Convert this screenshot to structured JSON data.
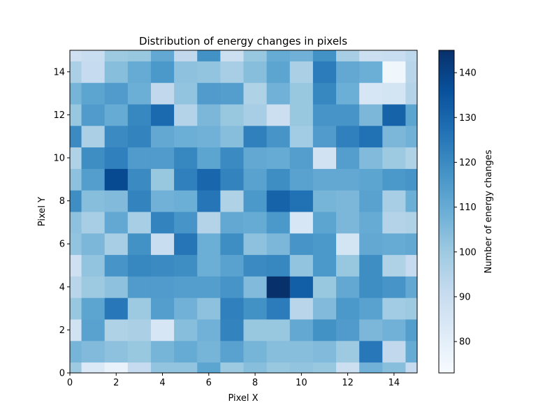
{
  "chart_data": {
    "type": "heatmap",
    "title": "Distribution of energy changes in pixels",
    "xlabel": "Pixel X",
    "ylabel": "Pixel Y",
    "xlim": [
      0,
      15
    ],
    "ylim": [
      0,
      15
    ],
    "x_ticks": [
      0,
      2,
      4,
      6,
      8,
      10,
      12,
      14
    ],
    "y_ticks": [
      0,
      2,
      4,
      6,
      8,
      10,
      12,
      14
    ],
    "colorbar": {
      "label": "Number of energy changes",
      "min": 73,
      "max": 145,
      "ticks": [
        80,
        90,
        100,
        110,
        120,
        130,
        140
      ],
      "colormap": "Blues",
      "stops": [
        "#f7fbff",
        "#deebf7",
        "#c6dbef",
        "#9ecae1",
        "#6baed6",
        "#4292c6",
        "#2171b5",
        "#08519c",
        "#08306b"
      ]
    },
    "grid": false,
    "row_order": "bottom-to-top",
    "values": [
      [
        100,
        83,
        78,
        91,
        102,
        102,
        112,
        100,
        104,
        101,
        102,
        101,
        89,
        108,
        104,
        91
      ],
      [
        107,
        105,
        103,
        101,
        107,
        110,
        107,
        113,
        107,
        104,
        104,
        105,
        100,
        125,
        92,
        110
      ],
      [
        87,
        113,
        96,
        97,
        85,
        104,
        108,
        122,
        101,
        101,
        111,
        118,
        115,
        106,
        108,
        114
      ],
      [
        101,
        112,
        125,
        100,
        114,
        108,
        103,
        123,
        118,
        124,
        94,
        105,
        116,
        113,
        99,
        100
      ],
      [
        94,
        100,
        103,
        115,
        115,
        114,
        114,
        117,
        105,
        145,
        132,
        101,
        111,
        119,
        117,
        111
      ],
      [
        88,
        102,
        117,
        121,
        120,
        119,
        109,
        113,
        120,
        121,
        102,
        116,
        101,
        119,
        96,
        91
      ],
      [
        102,
        106,
        98,
        118,
        90,
        126,
        109,
        119,
        103,
        106,
        117,
        116,
        86,
        111,
        110,
        111
      ],
      [
        103,
        98,
        111,
        98,
        122,
        117,
        95,
        111,
        110,
        116,
        85,
        112,
        106,
        110,
        95,
        96
      ],
      [
        119,
        104,
        105,
        122,
        108,
        109,
        126,
        96,
        116,
        131,
        127,
        107,
        106,
        113,
        98,
        109
      ],
      [
        103,
        114,
        138,
        120,
        101,
        123,
        130,
        122,
        113,
        119,
        113,
        111,
        111,
        112,
        116,
        117
      ],
      [
        96,
        119,
        123,
        115,
        115,
        121,
        112,
        120,
        111,
        110,
        114,
        87,
        114,
        105,
        100,
        96
      ],
      [
        120,
        97,
        120,
        122,
        111,
        109,
        108,
        104,
        123,
        117,
        99,
        115,
        123,
        127,
        106,
        108
      ],
      [
        101,
        115,
        110,
        121,
        129,
        95,
        106,
        101,
        98,
        89,
        101,
        117,
        117,
        106,
        131,
        112
      ],
      [
        107,
        112,
        115,
        109,
        92,
        102,
        115,
        114,
        96,
        108,
        101,
        121,
        109,
        85,
        86,
        95
      ],
      [
        97,
        91,
        104,
        110,
        116,
        103,
        102,
        98,
        104,
        112,
        97,
        124,
        111,
        109,
        76,
        94
      ],
      [
        88,
        90,
        100,
        101,
        111,
        92,
        118,
        89,
        101,
        110,
        108,
        118,
        98,
        89,
        90,
        93
      ]
    ]
  }
}
